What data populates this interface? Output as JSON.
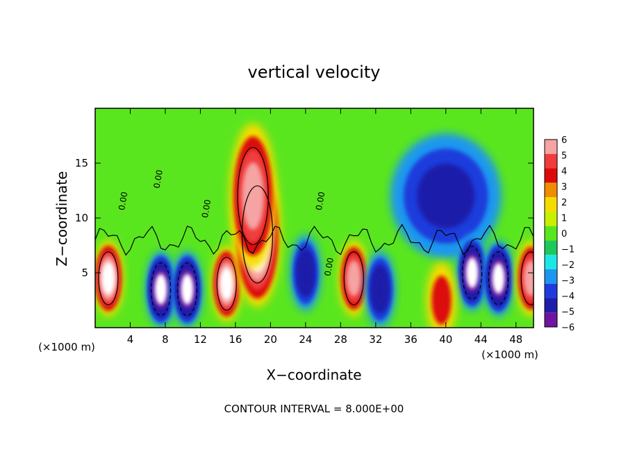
{
  "chart_data": {
    "type": "heatmap",
    "title": "vertical velocity",
    "xlabel": "X−coordinate",
    "ylabel": "Z−coordinate",
    "x_unit": "(×1000 m)",
    "z_unit": "(×1000 m)",
    "xlim": [
      0,
      50
    ],
    "ylim": [
      0,
      20
    ],
    "x_ticks": [
      4,
      8,
      12,
      16,
      20,
      24,
      28,
      32,
      36,
      40,
      44,
      48
    ],
    "y_ticks": [
      5,
      10,
      15
    ],
    "colorbar": {
      "labels": [
        "6",
        "5",
        "4",
        "3",
        "2",
        "1",
        "0",
        "−1",
        "−2",
        "−3",
        "−4",
        "−5",
        "−6"
      ],
      "colors": [
        "#f5a3a3",
        "#f03c3c",
        "#dc0a0a",
        "#f08c00",
        "#f5dc00",
        "#c8f000",
        "#5ae61e",
        "#1ec85a",
        "#1ee6e6",
        "#1e96f0",
        "#1e3cdc",
        "#1e1eaa",
        "#6e14a0"
      ]
    },
    "contour_labels": [
      "0.00",
      "0.00",
      "0.00",
      "0.00",
      "0.00"
    ],
    "footnote": "CONTOUR INTERVAL = 8.000E+00",
    "features": [
      {
        "x": 1.5,
        "z": 4.5,
        "w": 8
      },
      {
        "x": 7.5,
        "z": 3.5,
        "w": -8
      },
      {
        "x": 10.5,
        "z": 3.5,
        "w": -8
      },
      {
        "x": 15.0,
        "z": 4.0,
        "w": 8
      },
      {
        "x": 18.5,
        "z": 8.5,
        "w": 10
      },
      {
        "x": 18.0,
        "z": 12.0,
        "w": 7
      },
      {
        "x": 24.0,
        "z": 5.0,
        "w": -5
      },
      {
        "x": 29.5,
        "z": 4.5,
        "w": 7
      },
      {
        "x": 32.5,
        "z": 3.5,
        "w": -5
      },
      {
        "x": 40.0,
        "z": 12.0,
        "w": -4
      },
      {
        "x": 43.0,
        "z": 5.0,
        "w": -8
      },
      {
        "x": 46.0,
        "z": 4.5,
        "w": -8
      },
      {
        "x": 39.5,
        "z": 2.5,
        "w": 4
      },
      {
        "x": 49.7,
        "z": 4.5,
        "w": 7
      }
    ]
  }
}
